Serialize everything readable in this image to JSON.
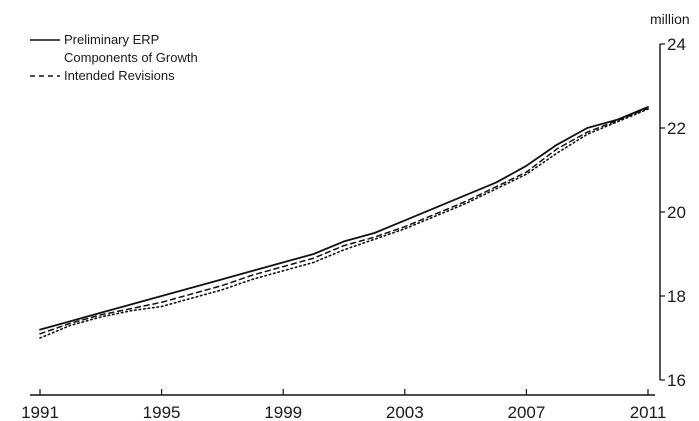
{
  "chart_data": {
    "type": "line",
    "title": "",
    "xlabel": "",
    "ylabel": "million",
    "y_axis_side": "right",
    "xlim": [
      1991,
      2011
    ],
    "ylim": [
      16,
      24
    ],
    "x_ticks": [
      "1991",
      "1995",
      "1999",
      "2003",
      "2007",
      "2011"
    ],
    "y_ticks": [
      "16",
      "18",
      "20",
      "22",
      "24"
    ],
    "grid": false,
    "legend_position": "top-left",
    "colors": {
      "line": "#111111",
      "background": "#ffffff"
    },
    "x": [
      1991,
      1992,
      1993,
      1994,
      1995,
      1996,
      1997,
      1998,
      1999,
      2000,
      2001,
      2002,
      2003,
      2004,
      2005,
      2006,
      2007,
      2008,
      2009,
      2010,
      2011
    ],
    "series": [
      {
        "name": "Preliminary ERP",
        "style": "solid",
        "values": [
          17.2,
          17.4,
          17.6,
          17.8,
          18.0,
          18.2,
          18.4,
          18.6,
          18.8,
          19.0,
          19.3,
          19.5,
          19.8,
          20.1,
          20.4,
          20.7,
          21.1,
          21.6,
          22.0,
          22.2,
          22.5
        ]
      },
      {
        "name": "Components of Growth",
        "style": "dotted",
        "values": [
          17.0,
          17.3,
          17.5,
          17.65,
          17.75,
          17.95,
          18.15,
          18.4,
          18.6,
          18.8,
          19.1,
          19.35,
          19.6,
          19.9,
          20.2,
          20.55,
          20.9,
          21.4,
          21.85,
          22.15,
          22.45
        ]
      },
      {
        "name": "Intended Revisions",
        "style": "dashed",
        "values": [
          17.1,
          17.35,
          17.55,
          17.7,
          17.85,
          18.05,
          18.25,
          18.5,
          18.7,
          18.9,
          19.2,
          19.4,
          19.65,
          19.95,
          20.25,
          20.6,
          20.95,
          21.5,
          21.9,
          22.18,
          22.47
        ]
      }
    ]
  }
}
